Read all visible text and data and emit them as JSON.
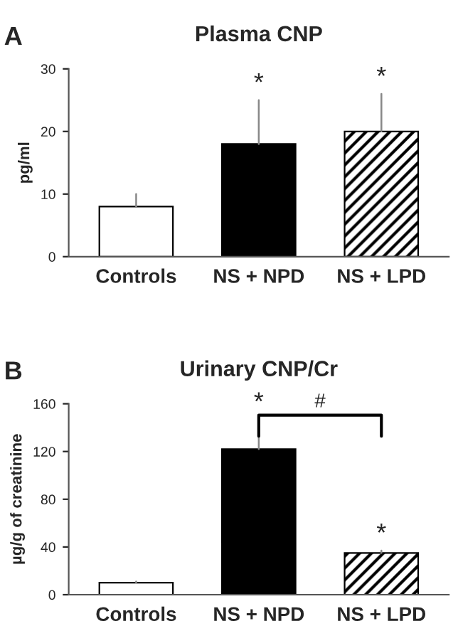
{
  "chart_data": [
    {
      "type": "bar",
      "title": "Plasma CNP",
      "ylabel": "pg/ml",
      "categories": [
        "Controls",
        "NS + NPD",
        "NS + LPD"
      ],
      "values": [
        8,
        18,
        20
      ],
      "colors": [
        "#ffffff",
        "#000000",
        "#000000"
      ],
      "errors": [
        [
          8,
          10
        ],
        [
          18,
          25
        ],
        [
          20,
          26
        ]
      ],
      "ylim": [
        0,
        30
      ],
      "yticks": [
        0,
        10,
        20,
        30
      ],
      "annotations": [
        "A",
        {
          "text": "*",
          "x": "NS + NPD",
          "y": 25
        },
        {
          "text": "*",
          "x": "NS + LPD",
          "y": 26
        }
      ]
    },
    {
      "type": "bar",
      "title": "Urinary CNP/Cr",
      "ylabel": "µg/g of creatinine",
      "categories": [
        "Controls",
        "NS + NPD",
        "NS + LPD"
      ],
      "values": [
        10,
        122,
        35
      ],
      "colors": [
        "#ffffff",
        "#000000",
        "#000000"
      ],
      "errors": [
        [
          10,
          11
        ],
        [
          122,
          147
        ],
        [
          35,
          37
        ]
      ],
      "ylim": [
        0,
        160
      ],
      "yticks": [
        0,
        40,
        80,
        120,
        160
      ],
      "annotations": [
        "B",
        "#",
        {
          "text": "*",
          "x": "NS + NPD",
          "y": 147
        },
        {
          "text": "*",
          "x": "NS + LPD",
          "y": 37
        }
      ]
    }
  ]
}
